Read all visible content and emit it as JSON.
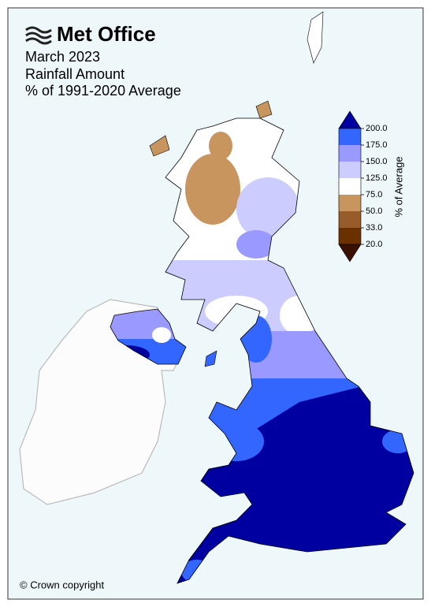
{
  "logo": "Met Office",
  "title": [
    "March 2023",
    "Rainfall Amount",
    "% of 1991-2020 Average"
  ],
  "legend": {
    "label": "% of Average",
    "ticks": [
      {
        "value": 200,
        "label": "200.0"
      },
      {
        "value": 175,
        "label": "175.0"
      },
      {
        "value": 150,
        "label": "150.0"
      },
      {
        "value": 125,
        "label": "125.0"
      },
      {
        "value": 75,
        "label": "75.0"
      },
      {
        "value": 50,
        "label": "50.0"
      },
      {
        "value": 33,
        "label": "33.0"
      },
      {
        "value": 20,
        "label": "20.0"
      }
    ],
    "colors": [
      "#0000a0",
      "#3366ff",
      "#9999ff",
      "#ccccff",
      "#ffffff",
      "#c8955e",
      "#985c2a",
      "#6b3000",
      "#3a1000"
    ]
  },
  "copyright": "© Crown copyright"
}
